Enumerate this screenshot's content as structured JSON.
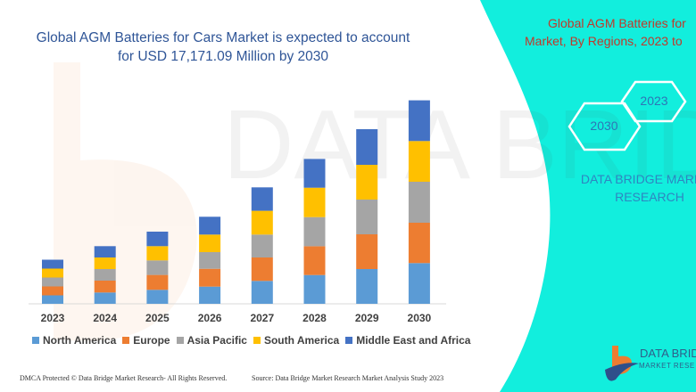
{
  "title": {
    "line1": "Global AGM Batteries for Cars Market is expected to account",
    "line2": "for USD 17,171.09 Million by 2030"
  },
  "side_panel": {
    "title_line1": "Global AGM Batteries for",
    "title_line2": "Market, By Regions, 2023 to",
    "hex_start": "2023",
    "hex_end": "2030",
    "brand_line1": "DATA BRIDGE MARKET",
    "brand_line2": "RESEARCH",
    "bg_color": "#12EEDD"
  },
  "logo": {
    "text": "DATA BRID",
    "sub": "MARKET RESE"
  },
  "footer": {
    "left": "DMCA Protected © Data Bridge Market Research-  All Rights Reserved.",
    "right": "Source: Data Bridge Market Research  Market Analysis Study 2023"
  },
  "chart_data": {
    "type": "bar",
    "stacked": true,
    "title": "Global AGM Batteries for Cars Market is expected to account for USD 17,171.09 Million by 2030",
    "xlabel": "",
    "ylabel": "",
    "y_axis_shown": false,
    "grid": false,
    "legend": "bottom",
    "categories": [
      "2023",
      "2024",
      "2025",
      "2026",
      "2027",
      "2028",
      "2029",
      "2030"
    ],
    "series": [
      {
        "name": "North America",
        "color": "#5B9BD5",
        "values": [
          9.5,
          12.7,
          15.7,
          19.3,
          25.7,
          32.3,
          39,
          45.7
        ]
      },
      {
        "name": "Europe",
        "color": "#ED7D31",
        "values": [
          10,
          13.3,
          16.7,
          20,
          26.3,
          32.3,
          39,
          45.3
        ]
      },
      {
        "name": "Asia Pacific",
        "color": "#A5A5A5",
        "values": [
          10,
          13,
          16.3,
          18.7,
          25.7,
          32.7,
          39,
          46
        ]
      },
      {
        "name": "South America",
        "color": "#FFC000",
        "values": [
          10,
          13,
          16,
          19.7,
          26.7,
          33,
          39,
          45.7
        ]
      },
      {
        "name": "Middle East and Africa",
        "color": "#4472C4",
        "values": [
          10,
          12.7,
          16.3,
          20,
          26.3,
          32.3,
          40,
          45.7
        ]
      }
    ]
  }
}
